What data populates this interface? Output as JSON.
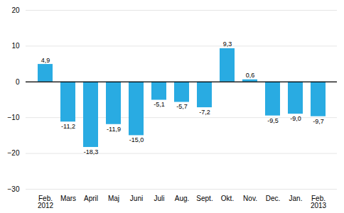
{
  "chart_data": {
    "type": "bar",
    "categories": [
      "Feb.\n2012",
      "Mars",
      "April",
      "Maj",
      "Juni",
      "Juli",
      "Aug.",
      "Sept.",
      "Okt.",
      "Nov.",
      "Dec.",
      "Jan.",
      "Feb.\n2013"
    ],
    "values": [
      4.9,
      -11.2,
      -18.3,
      -11.9,
      -15.0,
      -5.1,
      -5.7,
      -7.2,
      9.3,
      0.6,
      -9.5,
      -9.0,
      -9.7
    ],
    "value_labels": [
      "4,9",
      "-11,2",
      "-18,3",
      "-11,9",
      "-15,0",
      "-5,1",
      "-5,7",
      "-7,2",
      "9,3",
      "0,6",
      "-9,5",
      "-9,0",
      "-9,7"
    ],
    "color": "#29abe2",
    "ylim": [
      -30,
      20
    ],
    "yticks": [
      -30,
      -20,
      -10,
      0,
      10,
      20
    ],
    "grid": true,
    "data_labels": true
  }
}
